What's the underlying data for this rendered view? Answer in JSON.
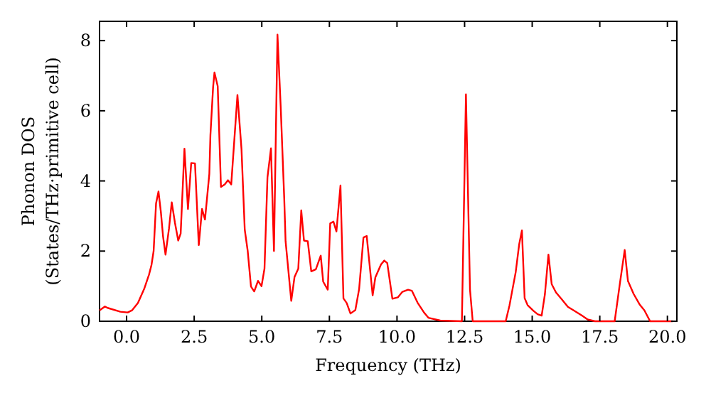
{
  "chart_data": {
    "type": "line",
    "xlabel": "Frequency (THz)",
    "ylabel": "Phonon DOS\n(States/THz·primitive cell)",
    "xlim": [
      -1.0,
      20.35
    ],
    "ylim": [
      0,
      8.55
    ],
    "xticks": [
      {
        "value": 0,
        "label": "0.0"
      },
      {
        "value": 2.5,
        "label": "2.5"
      },
      {
        "value": 5,
        "label": "5.0"
      },
      {
        "value": 7.5,
        "label": "7.5"
      },
      {
        "value": 10,
        "label": "10.0"
      },
      {
        "value": 12.5,
        "label": "12.5"
      },
      {
        "value": 15,
        "label": "15.0"
      },
      {
        "value": 17.5,
        "label": "17.5"
      },
      {
        "value": 20,
        "label": "20.0"
      }
    ],
    "yticks": [
      0,
      2,
      4,
      6,
      8
    ],
    "grid": false,
    "marker": "none",
    "line_style": "solid",
    "series": [
      {
        "color": "#ff0000",
        "x": [
          -1.0,
          -0.8,
          -0.7,
          -0.23,
          0.04,
          0.2,
          0.42,
          0.65,
          0.83,
          0.92,
          1.0,
          1.09,
          1.18,
          1.27,
          1.35,
          1.44,
          1.57,
          1.67,
          1.79,
          1.91,
          2.0,
          2.14,
          2.27,
          2.39,
          2.53,
          2.67,
          2.79,
          2.9,
          3.06,
          3.1,
          3.2,
          3.25,
          3.37,
          3.49,
          3.63,
          3.75,
          3.87,
          4.1,
          4.25,
          4.37,
          4.48,
          4.6,
          4.72,
          4.86,
          4.99,
          5.1,
          5.21,
          5.34,
          5.45,
          5.58,
          5.7,
          5.83,
          5.88,
          6.09,
          6.21,
          6.35,
          6.46,
          6.56,
          6.7,
          6.83,
          7.0,
          7.18,
          7.27,
          7.44,
          7.53,
          7.65,
          7.76,
          7.91,
          8.02,
          8.14,
          8.28,
          8.46,
          8.6,
          8.76,
          8.88,
          9.1,
          9.2,
          9.41,
          9.53,
          9.64,
          9.83,
          10.03,
          10.2,
          10.41,
          10.55,
          10.76,
          10.99,
          11.16,
          11.6,
          12.4,
          12.55,
          12.7,
          12.8,
          14.02,
          14.16,
          14.39,
          14.52,
          14.62,
          14.72,
          14.83,
          15.04,
          15.2,
          15.35,
          15.47,
          15.6,
          15.72,
          15.88,
          16.09,
          16.32,
          16.62,
          16.84,
          17.05,
          17.32,
          18.05,
          18.24,
          18.42,
          18.54,
          18.75,
          18.98,
          19.15,
          19.36,
          20.2
        ],
        "values": [
          0.31,
          0.42,
          0.38,
          0.27,
          0.25,
          0.31,
          0.52,
          0.92,
          1.33,
          1.6,
          2.0,
          3.36,
          3.7,
          3.1,
          2.41,
          1.9,
          2.65,
          3.39,
          2.8,
          2.3,
          2.5,
          4.92,
          3.2,
          4.51,
          4.5,
          2.17,
          3.2,
          2.9,
          4.2,
          5.3,
          6.68,
          7.09,
          6.7,
          3.83,
          3.9,
          4.02,
          3.9,
          6.45,
          4.9,
          2.61,
          2.0,
          0.99,
          0.85,
          1.15,
          1.0,
          1.5,
          4.1,
          4.93,
          2.0,
          8.17,
          6.1,
          3.5,
          2.28,
          0.58,
          1.26,
          1.5,
          3.16,
          2.3,
          2.28,
          1.42,
          1.48,
          1.87,
          1.13,
          0.9,
          2.79,
          2.84,
          2.56,
          3.87,
          0.65,
          0.52,
          0.22,
          0.32,
          0.92,
          2.39,
          2.43,
          0.74,
          1.25,
          1.62,
          1.73,
          1.66,
          0.64,
          0.68,
          0.84,
          0.9,
          0.87,
          0.53,
          0.26,
          0.1,
          0.02,
          0.0,
          6.47,
          0.9,
          0.0,
          0.0,
          0.45,
          1.4,
          2.2,
          2.59,
          0.66,
          0.46,
          0.3,
          0.2,
          0.16,
          0.77,
          1.9,
          1.06,
          0.82,
          0.63,
          0.41,
          0.27,
          0.16,
          0.05,
          0.0,
          0.0,
          1.06,
          2.03,
          1.15,
          0.78,
          0.47,
          0.31,
          0.0,
          0.0
        ]
      }
    ]
  }
}
